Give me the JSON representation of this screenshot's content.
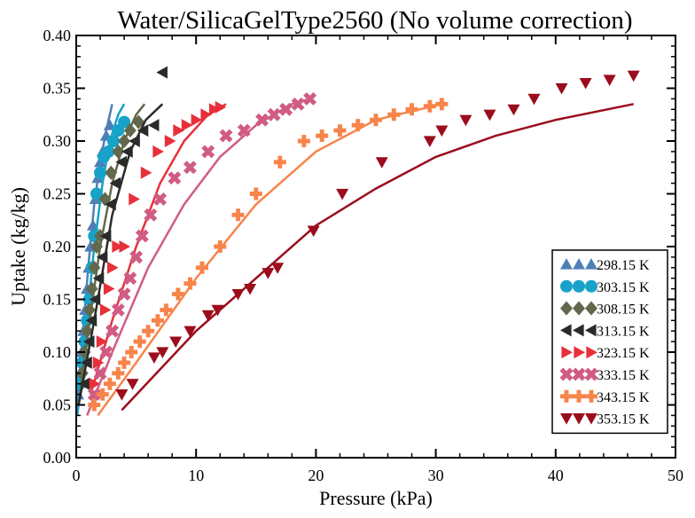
{
  "chart_data": {
    "type": "scatter",
    "title": "Water/SilicaGelType2560 (No volume correction)",
    "xlabel": "Pressure (kPa)",
    "ylabel": "Uptake (kg/kg)",
    "xlim": [
      0,
      50
    ],
    "ylim": [
      0.0,
      0.4
    ],
    "xticks": [
      "0",
      "10",
      "20",
      "30",
      "40",
      "50"
    ],
    "yticks": [
      "0.00",
      "0.05",
      "0.10",
      "0.15",
      "0.20",
      "0.25",
      "0.30",
      "0.35",
      "0.40"
    ],
    "grid": false,
    "legend_position": "bottom-right",
    "series": [
      {
        "name": "298.15 K",
        "marker": "triangle-up",
        "color": "#4f7fb5",
        "points": [
          [
            0.15,
            0.06
          ],
          [
            0.3,
            0.08
          ],
          [
            0.45,
            0.1
          ],
          [
            0.6,
            0.12
          ],
          [
            0.75,
            0.14
          ],
          [
            0.9,
            0.16
          ],
          [
            1.05,
            0.18
          ],
          [
            1.2,
            0.2
          ],
          [
            1.4,
            0.22
          ],
          [
            1.6,
            0.245
          ],
          [
            1.8,
            0.265
          ],
          [
            2.0,
            0.28
          ],
          [
            2.2,
            0.29
          ],
          [
            2.5,
            0.305
          ],
          [
            2.8,
            0.315
          ]
        ],
        "fit": [
          [
            0.05,
            0.05
          ],
          [
            0.5,
            0.11
          ],
          [
            1.0,
            0.18
          ],
          [
            1.5,
            0.24
          ],
          [
            2.0,
            0.28
          ],
          [
            2.5,
            0.31
          ],
          [
            3.0,
            0.335
          ]
        ]
      },
      {
        "name": "303.15 K",
        "marker": "circle",
        "color": "#17a2c8",
        "points": [
          [
            0.3,
            0.07
          ],
          [
            0.5,
            0.09
          ],
          [
            0.7,
            0.11
          ],
          [
            0.9,
            0.13
          ],
          [
            1.1,
            0.15
          ],
          [
            1.3,
            0.18
          ],
          [
            1.5,
            0.21
          ],
          [
            1.7,
            0.25
          ],
          [
            2.0,
            0.27
          ],
          [
            2.3,
            0.285
          ],
          [
            2.7,
            0.29
          ],
          [
            3.1,
            0.3
          ],
          [
            3.5,
            0.31
          ],
          [
            4.0,
            0.318
          ]
        ],
        "fit": [
          [
            0.1,
            0.04
          ],
          [
            0.8,
            0.12
          ],
          [
            1.5,
            0.2
          ],
          [
            2.2,
            0.26
          ],
          [
            2.8,
            0.3
          ],
          [
            3.5,
            0.325
          ],
          [
            4.0,
            0.335
          ]
        ]
      },
      {
        "name": "308.15 K",
        "marker": "diamond",
        "color": "#62684b",
        "points": [
          [
            0.5,
            0.08
          ],
          [
            0.7,
            0.1
          ],
          [
            0.9,
            0.12
          ],
          [
            1.1,
            0.14
          ],
          [
            1.3,
            0.16
          ],
          [
            1.5,
            0.18
          ],
          [
            1.7,
            0.2
          ],
          [
            2.0,
            0.21
          ],
          [
            2.4,
            0.245
          ],
          [
            2.9,
            0.27
          ],
          [
            3.5,
            0.29
          ],
          [
            4.0,
            0.3
          ],
          [
            4.5,
            0.31
          ],
          [
            5.2,
            0.318
          ]
        ],
        "fit": [
          [
            0.2,
            0.05
          ],
          [
            1.0,
            0.12
          ],
          [
            2.0,
            0.2
          ],
          [
            3.0,
            0.26
          ],
          [
            4.0,
            0.3
          ],
          [
            5.0,
            0.325
          ],
          [
            5.7,
            0.335
          ]
        ]
      },
      {
        "name": "313.15 K",
        "marker": "triangle-left",
        "color": "#2a2a2a",
        "points": [
          [
            0.7,
            0.07
          ],
          [
            0.9,
            0.09
          ],
          [
            1.1,
            0.11
          ],
          [
            1.3,
            0.13
          ],
          [
            1.6,
            0.15
          ],
          [
            1.9,
            0.17
          ],
          [
            2.2,
            0.19
          ],
          [
            2.5,
            0.21
          ],
          [
            2.9,
            0.24
          ],
          [
            3.3,
            0.26
          ],
          [
            3.8,
            0.28
          ],
          [
            4.3,
            0.29
          ],
          [
            4.9,
            0.3
          ],
          [
            5.6,
            0.31
          ],
          [
            6.5,
            0.315
          ],
          [
            7.2,
            0.365
          ]
        ],
        "fit": [
          [
            0.2,
            0.05
          ],
          [
            1.5,
            0.13
          ],
          [
            3.0,
            0.23
          ],
          [
            4.5,
            0.29
          ],
          [
            5.8,
            0.32
          ],
          [
            7.2,
            0.335
          ]
        ]
      },
      {
        "name": "323.15 K",
        "marker": "triangle-right",
        "color": "#e8303a",
        "points": [
          [
            1.5,
            0.07
          ],
          [
            1.8,
            0.09
          ],
          [
            2.1,
            0.11
          ],
          [
            2.4,
            0.14
          ],
          [
            2.7,
            0.16
          ],
          [
            3.0,
            0.18
          ],
          [
            3.4,
            0.2
          ],
          [
            4.0,
            0.2
          ],
          [
            4.8,
            0.245
          ],
          [
            5.8,
            0.27
          ],
          [
            6.8,
            0.29
          ],
          [
            7.8,
            0.3
          ],
          [
            8.5,
            0.31
          ],
          [
            9.2,
            0.315
          ],
          [
            10.0,
            0.32
          ],
          [
            10.8,
            0.325
          ],
          [
            11.5,
            0.33
          ],
          [
            12.0,
            0.332
          ]
        ],
        "fit": [
          [
            1.2,
            0.06
          ],
          [
            3.0,
            0.13
          ],
          [
            5.0,
            0.2
          ],
          [
            7.0,
            0.26
          ],
          [
            9.0,
            0.3
          ],
          [
            11.0,
            0.325
          ],
          [
            12.5,
            0.335
          ]
        ]
      },
      {
        "name": "333.15 K",
        "marker": "x-cross",
        "color": "#d05c84",
        "points": [
          [
            1.5,
            0.06
          ],
          [
            2.0,
            0.08
          ],
          [
            2.5,
            0.1
          ],
          [
            3.0,
            0.12
          ],
          [
            3.5,
            0.14
          ],
          [
            4.0,
            0.155
          ],
          [
            4.5,
            0.17
          ],
          [
            5.0,
            0.19
          ],
          [
            5.5,
            0.21
          ],
          [
            6.2,
            0.23
          ],
          [
            7.0,
            0.245
          ],
          [
            8.2,
            0.265
          ],
          [
            9.5,
            0.275
          ],
          [
            11.0,
            0.29
          ],
          [
            12.5,
            0.305
          ],
          [
            14.0,
            0.31
          ],
          [
            15.5,
            0.32
          ],
          [
            16.5,
            0.325
          ],
          [
            17.5,
            0.33
          ],
          [
            18.5,
            0.335
          ],
          [
            19.5,
            0.34
          ]
        ],
        "fit": [
          [
            0.9,
            0.04
          ],
          [
            3.0,
            0.1
          ],
          [
            6.0,
            0.18
          ],
          [
            9.0,
            0.24
          ],
          [
            12.0,
            0.285
          ],
          [
            15.0,
            0.315
          ],
          [
            18.0,
            0.335
          ],
          [
            19.5,
            0.34
          ]
        ]
      },
      {
        "name": "343.15 K",
        "marker": "plus",
        "color": "#f7844a",
        "points": [
          [
            1.5,
            0.05
          ],
          [
            2.2,
            0.06
          ],
          [
            2.8,
            0.07
          ],
          [
            3.5,
            0.08
          ],
          [
            4.0,
            0.09
          ],
          [
            4.6,
            0.1
          ],
          [
            5.3,
            0.11
          ],
          [
            6.0,
            0.12
          ],
          [
            6.8,
            0.13
          ],
          [
            7.5,
            0.14
          ],
          [
            8.5,
            0.155
          ],
          [
            9.5,
            0.165
          ],
          [
            10.5,
            0.18
          ],
          [
            12.0,
            0.2
          ],
          [
            13.5,
            0.23
          ],
          [
            15.0,
            0.25
          ],
          [
            17.0,
            0.28
          ],
          [
            19.0,
            0.3
          ],
          [
            20.5,
            0.305
          ],
          [
            22.0,
            0.31
          ],
          [
            23.5,
            0.315
          ],
          [
            25.0,
            0.32
          ],
          [
            26.5,
            0.325
          ],
          [
            28.0,
            0.33
          ],
          [
            29.5,
            0.333
          ],
          [
            30.5,
            0.335
          ]
        ],
        "fit": [
          [
            1.8,
            0.04
          ],
          [
            5.0,
            0.09
          ],
          [
            10.0,
            0.17
          ],
          [
            15.0,
            0.24
          ],
          [
            20.0,
            0.29
          ],
          [
            25.0,
            0.32
          ],
          [
            30.5,
            0.335
          ]
        ]
      },
      {
        "name": "353.15 K",
        "marker": "triangle-down",
        "color": "#9b0d1c",
        "points": [
          [
            3.8,
            0.06
          ],
          [
            4.7,
            0.07
          ],
          [
            6.5,
            0.095
          ],
          [
            7.2,
            0.1
          ],
          [
            8.3,
            0.11
          ],
          [
            9.5,
            0.12
          ],
          [
            11.0,
            0.135
          ],
          [
            11.8,
            0.14
          ],
          [
            13.5,
            0.155
          ],
          [
            14.5,
            0.16
          ],
          [
            16.0,
            0.175
          ],
          [
            16.8,
            0.18
          ],
          [
            19.8,
            0.215
          ],
          [
            22.2,
            0.25
          ],
          [
            25.5,
            0.28
          ],
          [
            29.5,
            0.3
          ],
          [
            30.5,
            0.31
          ],
          [
            32.5,
            0.32
          ],
          [
            34.5,
            0.325
          ],
          [
            36.5,
            0.33
          ],
          [
            38.2,
            0.34
          ],
          [
            40.5,
            0.35
          ],
          [
            42.5,
            0.355
          ],
          [
            44.5,
            0.358
          ],
          [
            46.5,
            0.362
          ]
        ],
        "fit": [
          [
            3.8,
            0.045
          ],
          [
            10.0,
            0.12
          ],
          [
            15.0,
            0.17
          ],
          [
            20.0,
            0.22
          ],
          [
            25.0,
            0.255
          ],
          [
            30.0,
            0.285
          ],
          [
            35.0,
            0.305
          ],
          [
            40.0,
            0.32
          ],
          [
            46.5,
            0.335
          ]
        ]
      }
    ]
  }
}
